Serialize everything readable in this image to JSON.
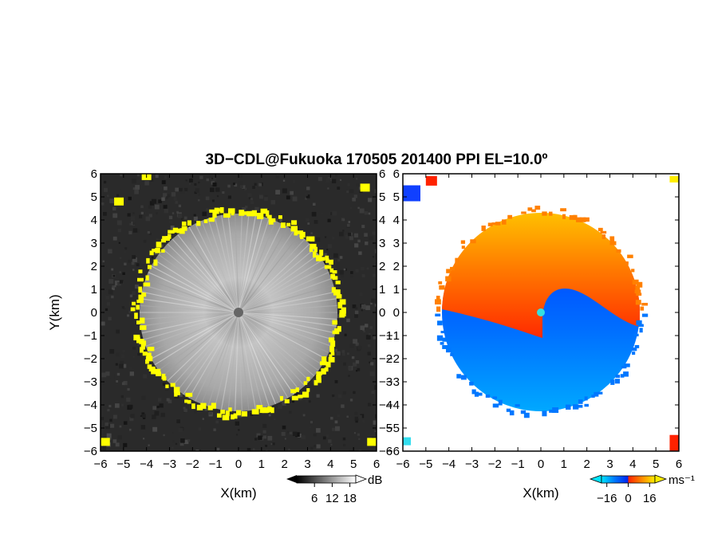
{
  "title": "3D−CDL@Fukuoka 170505 201400 PPI EL=10.0º",
  "chart_data": [
    {
      "type": "heatmap",
      "panel": "reflectivity",
      "xlabel": "X(km)",
      "ylabel": "Y(km)",
      "xlim": [
        -6,
        6
      ],
      "ylim": [
        -6,
        6
      ],
      "xticks": [
        -6,
        -5,
        -4,
        -3,
        -2,
        -1,
        0,
        1,
        2,
        3,
        4,
        5,
        6
      ],
      "yticks": [
        -6,
        -5,
        -4,
        -3,
        -2,
        -1,
        0,
        1,
        2,
        3,
        4,
        5,
        6
      ],
      "xtick_labels": [
        "−6",
        "−5",
        "−4",
        "−3",
        "−2",
        "−1",
        "0",
        "1",
        "2",
        "3",
        "4",
        "5",
        "6"
      ],
      "ytick_labels": [
        "−6",
        "−5",
        "−4",
        "−3",
        "−2",
        "−1",
        "0",
        "1",
        "2",
        "3",
        "4",
        "5",
        "6"
      ],
      "echo_radius_km": 4.3,
      "colorbar": {
        "unit": "dB",
        "ticks": [
          6,
          12,
          18
        ],
        "tick_labels": [
          "6",
          "12",
          "18"
        ],
        "range": [
          0,
          20
        ],
        "colors": [
          "#000000",
          "#ffffff"
        ]
      },
      "edge_color": "#ffff00",
      "background_color": "#2a2a2a"
    },
    {
      "type": "heatmap",
      "panel": "doppler_velocity",
      "xlabel": "X(km)",
      "xlim": [
        -6,
        6
      ],
      "ylim": [
        -6,
        6
      ],
      "xticks": [
        -6,
        -5,
        -4,
        -3,
        -2,
        -1,
        0,
        1,
        2,
        3,
        4,
        5,
        6
      ],
      "yticks": [
        -6,
        -5,
        -4,
        -3,
        -2,
        -1,
        0,
        1,
        2,
        3,
        4,
        5,
        6
      ],
      "xtick_labels": [
        "−6",
        "−5",
        "−4",
        "−3",
        "−2",
        "−1",
        "0",
        "1",
        "2",
        "3",
        "4",
        "5",
        "6"
      ],
      "ytick_labels": [
        "−6",
        "−5",
        "−4",
        "−3",
        "−2",
        "−1",
        "0",
        "1",
        "2",
        "3",
        "4",
        "5",
        "6"
      ],
      "echo_radius_km": 4.3,
      "colorbar": {
        "unit": "ms⁻¹",
        "ticks": [
          -16,
          0,
          16
        ],
        "tick_labels": [
          "−16",
          "0",
          "16"
        ],
        "range": [
          -20,
          20
        ],
        "colors": [
          "#00e5ff",
          "#0055ff",
          "#0022ee",
          "#ff2200",
          "#ff6600",
          "#ffaa00",
          "#ffee00"
        ]
      },
      "approaching_color": "#0040ff",
      "receding_color": "#ff5500"
    }
  ]
}
